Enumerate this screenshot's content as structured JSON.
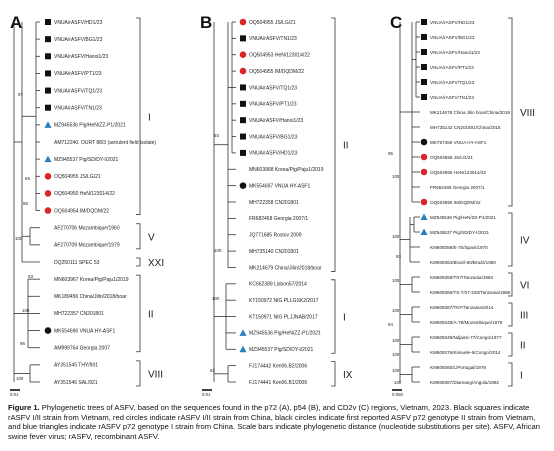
{
  "panels": [
    {
      "letter": "A",
      "leaves": [
        {
          "label": "VNUA/rASFV/HD1/23",
          "marker": "square"
        },
        {
          "label": "VNUA/rASFV/BG1/23",
          "marker": "square"
        },
        {
          "label": "VNUA/rASFV/Hanoi1/23",
          "marker": "square"
        },
        {
          "label": "VNUA/rASFV/PT1/23",
          "marker": "square"
        },
        {
          "label": "VNUA/rASFV/TQ1/23",
          "marker": "square"
        },
        {
          "label": "VNUA/rASFV/TN1/23",
          "marker": "square"
        },
        {
          "label": "MZ945536 Pig/HeN/ZZ-P1/2021",
          "marker": "triangle"
        },
        {
          "label": "AM712240. OURT 88/3 (avirulent field isolate)",
          "marker": "none"
        },
        {
          "label": "MZ945537 Pig/SD/DY-I/2021",
          "marker": "triangle"
        },
        {
          "label": "OQ504955 JS/LG/21",
          "marker": "circle-red"
        },
        {
          "label": "OQ504950 HeN/123014/22",
          "marker": "circle-red"
        },
        {
          "label": "OQ504954 IM/DQDM/22",
          "marker": "circle-red"
        },
        {
          "label": "AF270706 Mozambique/1960",
          "marker": "none"
        },
        {
          "label": "AF270709 Mozambique/1979",
          "marker": "none"
        },
        {
          "label": "DQ250111 SPEC 53",
          "marker": "none"
        },
        {
          "label": "MN603967 Korea/Pig/Paju1/2019",
          "marker": "none"
        },
        {
          "label": "MK189456 China/Jilin/2018/boar",
          "marker": "none"
        },
        {
          "label": "MH722357 CN201801",
          "marker": "none"
        },
        {
          "label": "MK554696 VNUA HY-ASF1",
          "marker": "circle-black"
        },
        {
          "label": "AM999764 Georgia 2007",
          "marker": "none"
        },
        {
          "label": "AY351545 THY/901",
          "marker": "none"
        },
        {
          "label": "AY351546 SAL/921",
          "marker": "none"
        }
      ],
      "genotypes": [
        "I",
        "V",
        "XXI",
        "II",
        "VIII"
      ],
      "bootstrap": [
        "97",
        "65",
        "95",
        "100",
        "63",
        "100",
        "96",
        "100"
      ],
      "scale": "0.01"
    },
    {
      "letter": "B",
      "leaves": [
        {
          "label": "OQ504955 JS/LG/21",
          "marker": "circle-red"
        },
        {
          "label": "VNUA/rASFV/TN1/23",
          "marker": "square"
        },
        {
          "label": "OQ504953 HeN/123014/22",
          "marker": "circle-red"
        },
        {
          "label": "OQ504955 IM/DQDM/22",
          "marker": "circle-red"
        },
        {
          "label": "VNUA/rASFV/TQ1/23",
          "marker": "square"
        },
        {
          "label": "VNUA/rASFV/PT1/23",
          "marker": "square"
        },
        {
          "label": "VNUA/rASFV/Hanoi1/23",
          "marker": "square"
        },
        {
          "label": "VNUA/rASFV/BG1/23",
          "marker": "square"
        },
        {
          "label": "VNUA/rASFV/HD1/23",
          "marker": "square"
        },
        {
          "label": "MN603968 Korea/Pig/Paju1/2019",
          "marker": "none"
        },
        {
          "label": "MK554697 VNUA HY-ASF1",
          "marker": "circle-black"
        },
        {
          "label": "MH722358 CN201801",
          "marker": "none"
        },
        {
          "label": "FR682468 Georgia 2007/1",
          "marker": "none"
        },
        {
          "label": "JQ771685 Rostov 2009",
          "marker": "none"
        },
        {
          "label": "MH735140 CN201801",
          "marker": "none"
        },
        {
          "label": "MK214679 China/Jilin/2018/boar",
          "marker": "none"
        },
        {
          "label": "KC662389 Lisbon57/2014",
          "marker": "none"
        },
        {
          "label": "KT150972 NIG PLLGSK2/2017",
          "marker": "none"
        },
        {
          "label": "KT150971 NIG PLJJNAB/2017",
          "marker": "none"
        },
        {
          "label": "MZ945536 Pig/HeN/ZZ-P1/2021",
          "marker": "triangle"
        },
        {
          "label": "MZ945537 Pig/SD/DY-I/2021",
          "marker": "triangle"
        },
        {
          "label": "FJ174442 Ken06.B2/2006",
          "marker": "none"
        },
        {
          "label": "FJ174441 Ken06.B1/2006",
          "marker": "none"
        }
      ],
      "genotypes": [
        "II",
        "I",
        "IX"
      ],
      "bootstrap": [
        "93",
        "100",
        "100",
        "82"
      ],
      "scale": "0.01"
    },
    {
      "letter": "C",
      "leaves": [
        {
          "label": "VNUA/rASFV/HD1/23",
          "marker": "square"
        },
        {
          "label": "VNUA/rASFV/BG1/23",
          "marker": "square"
        },
        {
          "label": "VNUA/rASFV/Hanoi1/23",
          "marker": "square"
        },
        {
          "label": "VNUA/rASFV/PT1/23",
          "marker": "square"
        },
        {
          "label": "VNUA/rASFV/TQ1/23",
          "marker": "square"
        },
        {
          "label": "VNUA/rASFV/TN1/23",
          "marker": "square"
        },
        {
          "label": "MK214678 China Jilin boar/China/2018",
          "marker": "none"
        },
        {
          "label": "MH735142 CN201801/China/2018",
          "marker": "none"
        },
        {
          "label": "MK757459 VNUA HY-ASF1",
          "marker": "circle-black"
        },
        {
          "label": "OQ504956 JS/LG/21",
          "marker": "circle-red"
        },
        {
          "label": "OQ504955 HeN/123014/22",
          "marker": "circle-red"
        },
        {
          "label": "FR682469 Georgia 2007/1",
          "marker": "none"
        },
        {
          "label": "OQ504956 IM/DQDM/22",
          "marker": "circle-red"
        },
        {
          "label": "MZ945536 Pig/HeN/ZZ-P1/2021",
          "marker": "triangle"
        },
        {
          "label": "MZ945537 Pig/SD/DY-I/2021",
          "marker": "triangle"
        },
        {
          "label": "KM609359/E-70/Spain/1970",
          "marker": "none"
        },
        {
          "label": "KM609364/Brazil-80/Brazil/1980",
          "marker": "none"
        },
        {
          "label": "KM609358/TS7/Tanzania/1984",
          "marker": "none"
        },
        {
          "label": "KM609366/TS-7/27-230/Tanzania/1986",
          "marker": "none"
        },
        {
          "label": "KM609367/TKF/Tanzania/2014",
          "marker": "none"
        },
        {
          "label": "KM609348/A-78/Mozambique/1978",
          "marker": "none"
        },
        {
          "label": "KM609349/Ndjassi-77/Congo/1977",
          "marker": "none"
        },
        {
          "label": "KM609376/Kimuele-6/Congo/2014",
          "marker": "none"
        },
        {
          "label": "KM609360/L/Portugal/1978",
          "marker": "none"
        },
        {
          "label": "KM609367/Diamang/Angola/1982",
          "marker": "none"
        }
      ],
      "genotypes": [
        "VIII",
        "IV",
        "VI",
        "III",
        "II",
        "I"
      ],
      "bootstrap": [
        "95",
        "100",
        "100",
        "93",
        "100",
        "100",
        "94",
        "100",
        "100",
        "100",
        "100"
      ],
      "scale": "0.050"
    }
  ],
  "colors": {
    "red": "#d9262b",
    "blue": "#2a7fbf",
    "black": "#111111",
    "line": "#333333"
  },
  "caption": {
    "lead": "Figure 1.",
    "text": " Phylogenetic trees of ASFV, based on the sequences found in the p72 (A), p54 (B), and CD2v (C) regions, Vietnam, 2023. Black squares indicate rASFV I/II strain from Vietnam, red circles indicate rASFV I/II strain from China, black circles indicate first reported ASFV p72 genotype II strain from Vietnam, and blue triangles indicate rASFV p72 genotype I strain from China. Scale bars indicate phylogenetic distance (nucleotide substitutions per site). ASFV, African swine fever virus; rASFV, recombinant ASFV."
  }
}
